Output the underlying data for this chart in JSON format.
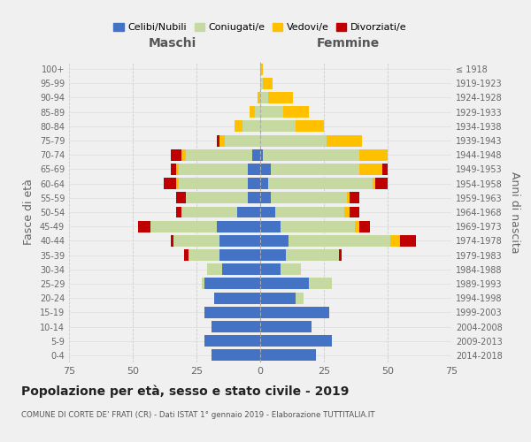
{
  "age_groups": [
    "0-4",
    "5-9",
    "10-14",
    "15-19",
    "20-24",
    "25-29",
    "30-34",
    "35-39",
    "40-44",
    "45-49",
    "50-54",
    "55-59",
    "60-64",
    "65-69",
    "70-74",
    "75-79",
    "80-84",
    "85-89",
    "90-94",
    "95-99",
    "100+"
  ],
  "birth_years": [
    "2014-2018",
    "2009-2013",
    "2004-2008",
    "1999-2003",
    "1994-1998",
    "1989-1993",
    "1984-1988",
    "1979-1983",
    "1974-1978",
    "1969-1973",
    "1964-1968",
    "1959-1963",
    "1954-1958",
    "1949-1953",
    "1944-1948",
    "1939-1943",
    "1934-1938",
    "1929-1933",
    "1924-1928",
    "1919-1923",
    "≤ 1918"
  ],
  "male": {
    "celibe": [
      19,
      22,
      19,
      22,
      18,
      22,
      15,
      16,
      16,
      17,
      9,
      5,
      5,
      5,
      3,
      0,
      0,
      0,
      0,
      0,
      0
    ],
    "coniugato": [
      0,
      0,
      0,
      0,
      0,
      1,
      6,
      12,
      18,
      26,
      22,
      24,
      27,
      27,
      26,
      14,
      7,
      2,
      0,
      0,
      0
    ],
    "vedovo": [
      0,
      0,
      0,
      0,
      0,
      0,
      0,
      0,
      0,
      0,
      0,
      0,
      1,
      1,
      2,
      2,
      3,
      2,
      1,
      0,
      0
    ],
    "divorziato": [
      0,
      0,
      0,
      0,
      0,
      0,
      0,
      2,
      1,
      5,
      2,
      4,
      5,
      2,
      4,
      1,
      0,
      0,
      0,
      0,
      0
    ]
  },
  "female": {
    "nubile": [
      22,
      28,
      20,
      27,
      14,
      19,
      8,
      10,
      11,
      8,
      6,
      4,
      3,
      4,
      1,
      0,
      0,
      0,
      0,
      0,
      0
    ],
    "coniugata": [
      0,
      0,
      0,
      0,
      3,
      9,
      8,
      21,
      40,
      29,
      27,
      30,
      41,
      35,
      38,
      26,
      14,
      9,
      3,
      1,
      0
    ],
    "vedova": [
      0,
      0,
      0,
      0,
      0,
      0,
      0,
      0,
      4,
      2,
      2,
      1,
      1,
      9,
      11,
      14,
      11,
      10,
      10,
      4,
      1
    ],
    "divorziata": [
      0,
      0,
      0,
      0,
      0,
      0,
      0,
      1,
      6,
      4,
      4,
      4,
      5,
      2,
      0,
      0,
      0,
      0,
      0,
      0,
      0
    ]
  },
  "colors": {
    "celibe": "#4472c4",
    "coniugato": "#c5d9a0",
    "vedovo": "#ffc000",
    "divorziato": "#c00000"
  },
  "xlim": 75,
  "title": "Popolazione per età, sesso e stato civile - 2019",
  "subtitle": "COMUNE DI CORTE DE' FRATI (CR) - Dati ISTAT 1° gennaio 2019 - Elaborazione TUTTITALIA.IT",
  "legend_labels": [
    "Celibi/Nubili",
    "Coniugati/e",
    "Vedovi/e",
    "Divorziati/e"
  ],
  "ylabel_left": "Fasce di età",
  "ylabel_right": "Anni di nascita",
  "xlabel_left": "Maschi",
  "xlabel_right": "Femmine",
  "bg_color": "#f0f0f0"
}
